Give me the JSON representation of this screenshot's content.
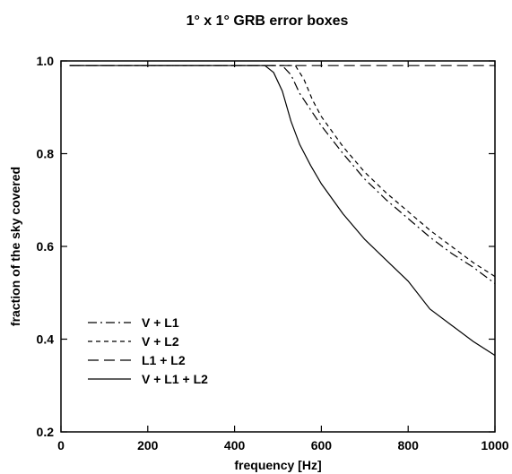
{
  "chart_data": {
    "type": "line",
    "title": "1° x 1° GRB error boxes",
    "xlabel": "frequency [Hz]",
    "ylabel": "fraction of the sky covered",
    "xlim": [
      0,
      1000
    ],
    "ylim": [
      0.2,
      1.0
    ],
    "x_ticks": [
      0,
      200,
      400,
      600,
      800,
      1000
    ],
    "x_tick_labels": [
      "0",
      "200",
      "400",
      "600",
      "800",
      "1000"
    ],
    "y_ticks": [
      0.2,
      0.4,
      0.6,
      0.8,
      1.0
    ],
    "y_tick_labels": [
      "0.2",
      "0.4",
      "0.6",
      "0.8",
      "1.0"
    ],
    "grid": false,
    "legend_position": "bottom-left",
    "series": [
      {
        "name": "V + L1",
        "dash": "dash-dot",
        "x": [
          20,
          510,
          530,
          550,
          575,
          600,
          650,
          700,
          750,
          800,
          850,
          900,
          950,
          1000
        ],
        "y": [
          0.99,
          0.99,
          0.97,
          0.93,
          0.895,
          0.86,
          0.8,
          0.745,
          0.7,
          0.66,
          0.62,
          0.585,
          0.555,
          0.52
        ]
      },
      {
        "name": "V + L2",
        "dash": "short-dash",
        "x": [
          20,
          540,
          560,
          580,
          600,
          650,
          700,
          750,
          800,
          850,
          900,
          950,
          1000
        ],
        "y": [
          0.99,
          0.99,
          0.96,
          0.915,
          0.88,
          0.815,
          0.76,
          0.715,
          0.675,
          0.635,
          0.6,
          0.565,
          0.535
        ]
      },
      {
        "name": "L1 + L2",
        "dash": "long-dash",
        "x": [
          20,
          1000
        ],
        "y": [
          0.99,
          0.99
        ]
      },
      {
        "name": "V + L1 + L2",
        "dash": "solid",
        "x": [
          20,
          470,
          490,
          510,
          530,
          550,
          575,
          600,
          650,
          700,
          750,
          800,
          850,
          900,
          950,
          1000
        ],
        "y": [
          0.99,
          0.99,
          0.975,
          0.935,
          0.87,
          0.82,
          0.775,
          0.735,
          0.67,
          0.615,
          0.57,
          0.525,
          0.465,
          0.43,
          0.395,
          0.365
        ]
      }
    ]
  }
}
